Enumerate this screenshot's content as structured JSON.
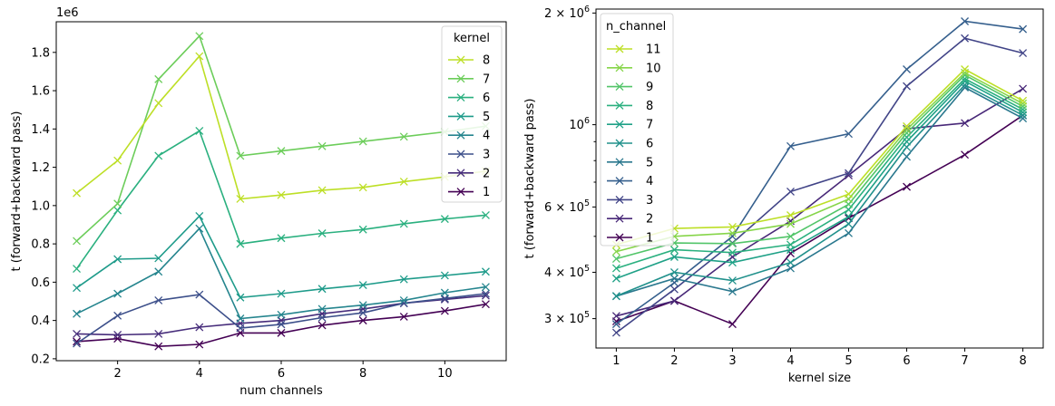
{
  "chart_data": [
    {
      "type": "line",
      "xlabel": "num channels",
      "ylabel": "t (forward+backward pass)",
      "offset_text": "1e6",
      "xlim": [
        0.5,
        11.5
      ],
      "ylim": [
        0.19,
        1.96
      ],
      "xticks": [
        2,
        4,
        6,
        8,
        10
      ],
      "xtick_labels": [
        "2",
        "4",
        "6",
        "8",
        "10"
      ],
      "yticks": [
        0.2,
        0.4,
        0.6,
        0.8,
        1.0,
        1.2,
        1.4,
        1.6,
        1.8
      ],
      "ytick_labels": [
        "0.2",
        "0.4",
        "0.6",
        "0.8",
        "1.0",
        "1.2",
        "1.4",
        "1.6",
        "1.8"
      ],
      "legend_title": "kernel",
      "legend_position": "top-right",
      "x": [
        1,
        2,
        3,
        4,
        5,
        6,
        7,
        8,
        9,
        10,
        11
      ],
      "series": [
        {
          "name": "8",
          "color": "#bddf26",
          "values": [
            1.065,
            1.235,
            1.535,
            1.78,
            1.035,
            1.055,
            1.08,
            1.095,
            1.125,
            1.15,
            1.18
          ]
        },
        {
          "name": "7",
          "color": "#6ccd5a",
          "values": [
            0.815,
            1.01,
            1.66,
            1.885,
            1.26,
            1.285,
            1.31,
            1.335,
            1.36,
            1.385,
            1.415
          ]
        },
        {
          "name": "6",
          "color": "#2ab07f",
          "values": [
            0.67,
            0.975,
            1.26,
            1.39,
            0.8,
            0.83,
            0.855,
            0.875,
            0.905,
            0.93,
            0.95
          ]
        },
        {
          "name": "5",
          "color": "#1e9b8a",
          "values": [
            0.57,
            0.72,
            0.725,
            0.945,
            0.52,
            0.54,
            0.565,
            0.585,
            0.615,
            0.635,
            0.655
          ]
        },
        {
          "name": "4",
          "color": "#25858e",
          "values": [
            0.435,
            0.54,
            0.655,
            0.88,
            0.41,
            0.43,
            0.46,
            0.48,
            0.505,
            0.545,
            0.575
          ]
        },
        {
          "name": "3",
          "color": "#3c4f8a",
          "values": [
            0.28,
            0.425,
            0.505,
            0.535,
            0.36,
            0.38,
            0.415,
            0.44,
            0.49,
            0.515,
            0.54
          ]
        },
        {
          "name": "2",
          "color": "#472d7b",
          "values": [
            0.33,
            0.325,
            0.33,
            0.365,
            0.385,
            0.4,
            0.435,
            0.46,
            0.49,
            0.51,
            0.53
          ]
        },
        {
          "name": "1",
          "color": "#440154",
          "values": [
            0.29,
            0.305,
            0.265,
            0.275,
            0.335,
            0.335,
            0.375,
            0.4,
            0.42,
            0.45,
            0.485
          ]
        }
      ]
    },
    {
      "type": "line",
      "xlabel": "kernel size",
      "ylabel": "t (forward+backward pass)",
      "yscale": "log",
      "xlim": [
        0.65,
        8.35
      ],
      "ylim": [
        250000,
        2050000
      ],
      "xticks": [
        1,
        2,
        3,
        4,
        5,
        6,
        7,
        8
      ],
      "xtick_labels": [
        "1",
        "2",
        "3",
        "4",
        "5",
        "6",
        "7",
        "8"
      ],
      "yticks_major": [
        300000,
        400000,
        600000,
        1000000,
        2000000
      ],
      "ytick_base_labels": [
        "3 × 10",
        "4 × 10",
        "6 × 10",
        "10",
        "2 × 10"
      ],
      "ytick_exponent_labels": [
        "5",
        "5",
        "5",
        "6",
        "6"
      ],
      "yticks_minor": [
        500000,
        700000,
        800000,
        900000
      ],
      "legend_title": "n_channel",
      "legend_position": "top-left",
      "x": [
        1,
        2,
        3,
        4,
        5,
        6,
        7,
        8
      ],
      "series": [
        {
          "name": "11",
          "color": "#bddf26",
          "values": [
            475000,
            525000,
            530000,
            570000,
            650000,
            990000,
            1410000,
            1160000
          ]
        },
        {
          "name": "10",
          "color": "#86d549",
          "values": [
            455000,
            500000,
            510000,
            540000,
            630000,
            970000,
            1380000,
            1140000
          ]
        },
        {
          "name": "9",
          "color": "#52c569",
          "values": [
            435000,
            480000,
            478000,
            500000,
            610000,
            950000,
            1360000,
            1120000
          ]
        },
        {
          "name": "8",
          "color": "#2ab07f",
          "values": [
            410000,
            460000,
            452000,
            475000,
            590000,
            925000,
            1330000,
            1100000
          ]
        },
        {
          "name": "7",
          "color": "#1fa187",
          "values": [
            385000,
            440000,
            425000,
            460000,
            565000,
            900000,
            1310000,
            1080000
          ]
        },
        {
          "name": "6",
          "color": "#21918c",
          "values": [
            345000,
            400000,
            380000,
            425000,
            540000,
            870000,
            1280000,
            1060000
          ]
        },
        {
          "name": "5",
          "color": "#2a788e",
          "values": [
            345000,
            385000,
            355000,
            410000,
            510000,
            820000,
            1260000,
            1040000
          ]
        },
        {
          "name": "4",
          "color": "#355f8d",
          "values": [
            290000,
            375000,
            500000,
            875000,
            945000,
            1410000,
            1900000,
            1810000
          ]
        },
        {
          "name": "3",
          "color": "#414487",
          "values": [
            275000,
            360000,
            480000,
            660000,
            740000,
            1270000,
            1710000,
            1560000
          ]
        },
        {
          "name": "2",
          "color": "#482878",
          "values": [
            305000,
            335000,
            440000,
            550000,
            730000,
            975000,
            1010000,
            1250000
          ]
        },
        {
          "name": "1",
          "color": "#440154",
          "values": [
            295000,
            335000,
            290000,
            450000,
            560000,
            680000,
            830000,
            1060000
          ]
        }
      ]
    }
  ]
}
